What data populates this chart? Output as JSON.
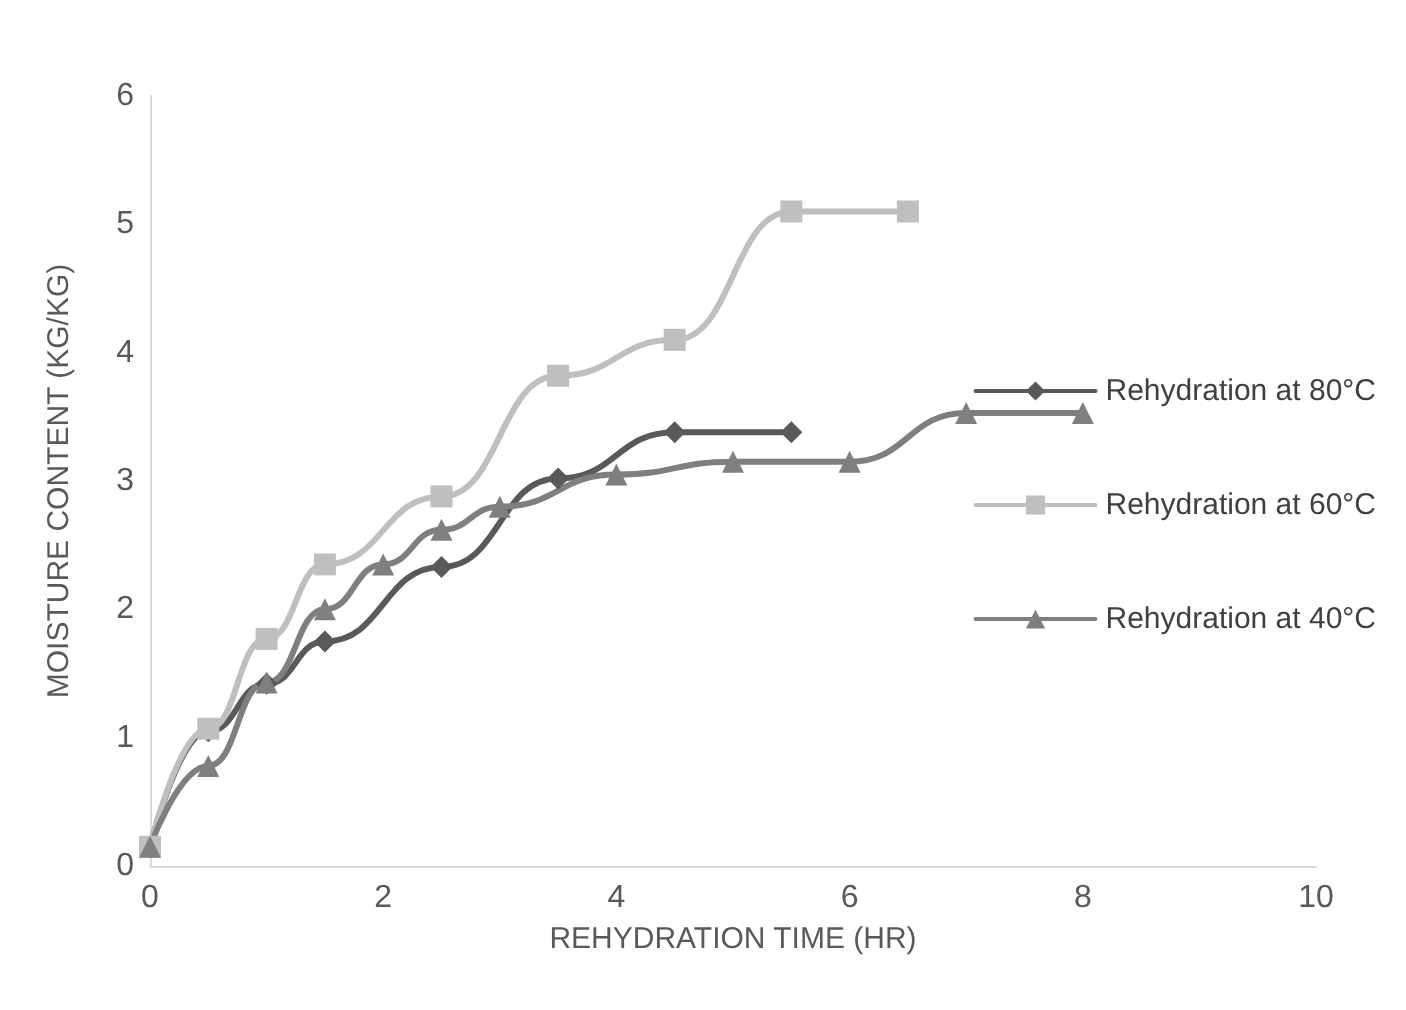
{
  "chart_data": {
    "type": "line",
    "xlabel": "REHYDRATION TIME (HR)",
    "ylabel": "MOISTURE CONTENT (KG/KG)",
    "xlim": [
      0,
      10
    ],
    "xticks": [
      0,
      2,
      4,
      6,
      8,
      10
    ],
    "ylim": [
      0,
      6
    ],
    "yticks": [
      0,
      1,
      2,
      3,
      4,
      5,
      6
    ],
    "grid": false,
    "legend": "right",
    "series": [
      {
        "name": "Rehydration at 80°C",
        "color": "#595959",
        "marker": "diamond",
        "x": [
          0,
          0.5,
          1,
          1.5,
          2.5,
          3.5,
          4.5,
          5.5
        ],
        "values": [
          0.15,
          1.05,
          1.42,
          1.75,
          2.33,
          3.02,
          3.38,
          3.38
        ]
      },
      {
        "name": "Rehydration at 60°C",
        "color": "#bfbfbf",
        "marker": "square",
        "x": [
          0,
          0.5,
          1,
          1.5,
          2.5,
          3.5,
          4.5,
          5.5,
          6.5
        ],
        "values": [
          0.15,
          1.07,
          1.77,
          2.35,
          2.88,
          3.82,
          4.1,
          5.1,
          5.1
        ]
      },
      {
        "name": "Rehydration at 40°C",
        "color": "#7f7f7f",
        "marker": "triangle",
        "x": [
          0,
          0.5,
          1,
          1.5,
          2,
          2.5,
          3,
          4,
          5,
          6,
          7,
          8
        ],
        "values": [
          0.15,
          0.78,
          1.43,
          2.0,
          2.35,
          2.62,
          2.8,
          3.05,
          3.15,
          3.15,
          3.53,
          3.53
        ]
      }
    ]
  }
}
